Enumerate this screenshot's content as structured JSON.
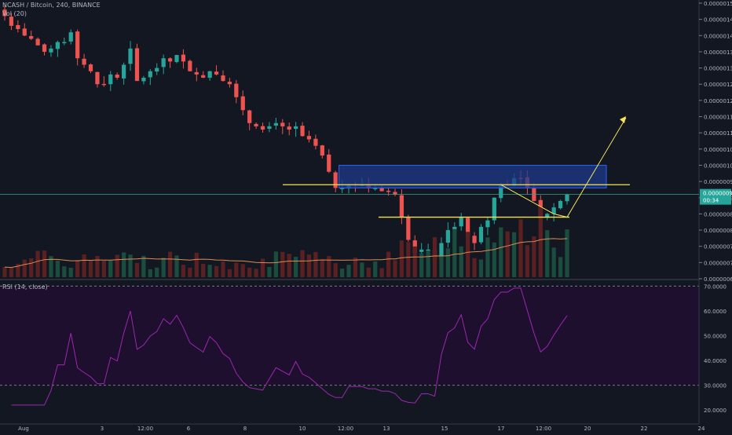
{
  "header": {
    "title": "NCASH / Bitcoin, 240, BINANCE",
    "volume_indicator": "Vol (20)",
    "rsi_indicator": "RSI (14, close)"
  },
  "colors": {
    "background": "#131722",
    "up": "#26a69a",
    "down": "#ef5350",
    "volume_up": "#1b4d3e",
    "volume_down": "#5b2021",
    "volume_ma": "#e08a53",
    "rsi_line": "#9c27b0",
    "rsi_band": "#1f0f2e",
    "yellow": "#f5e45a",
    "zone_fill": "#1e3a8a",
    "zone_stroke": "#2962ff",
    "price_line": "#26a69a",
    "axis_text": "#b2b5be"
  },
  "chart_data": {
    "type": "candlestick",
    "price_axis": {
      "range": [
        6.5e-07,
        1.5e-06
      ],
      "ticks": [
        "0.00000150",
        "0.00000145",
        "0.00000140",
        "0.00000135",
        "0.00000130",
        "0.00000125",
        "0.00000120",
        "0.00000115",
        "0.00000110",
        "0.00000105",
        "0.00000100",
        "0.00000095",
        "0.00000090",
        "0.00000085",
        "0.00000080",
        "0.00000075",
        "0.00000070",
        "0.00000065"
      ],
      "last_price_label": "0.00000091",
      "countdown_label": "00:34"
    },
    "time_axis": [
      "Aug",
      "3",
      "12:00",
      "6",
      "8",
      "10",
      "12:00",
      "13",
      "15",
      "17",
      "12:00",
      "20",
      "22",
      "24"
    ],
    "close_series": [
      1.46e-06,
      1.43e-06,
      1.42e-06,
      1.4e-06,
      1.39e-06,
      1.37e-06,
      1.35e-06,
      1.36e-06,
      1.38e-06,
      1.38e-06,
      1.41e-06,
      1.33e-06,
      1.31e-06,
      1.29e-06,
      1.25e-06,
      1.25e-06,
      1.28e-06,
      1.27e-06,
      1.31e-06,
      1.36e-06,
      1.26e-06,
      1.27e-06,
      1.29e-06,
      1.3e-06,
      1.33e-06,
      1.32e-06,
      1.34e-06,
      1.32e-06,
      1.29e-06,
      1.28e-06,
      1.27e-06,
      1.29e-06,
      1.28e-06,
      1.26e-06,
      1.25e-06,
      1.21e-06,
      1.17e-06,
      1.13e-06,
      1.12e-06,
      1.11e-06,
      1.12e-06,
      1.13e-06,
      1.12e-06,
      1.11e-06,
      1.12e-06,
      1.09e-06,
      1.08e-06,
      1.06e-06,
      1.03e-06,
      9.8e-07,
      9.3e-07,
      9.3e-07,
      9.4e-07,
      9.4e-07,
      9.4e-07,
      9.3e-07,
      9.3e-07,
      9.2e-07,
      9.2e-07,
      9.1e-07,
      8.4e-07,
      7.7e-07,
      7.3e-07,
      7.4e-07,
      7.4e-07,
      7.1e-07,
      7.6e-07,
      8e-07,
      8.1e-07,
      8.4e-07,
      7.8e-07,
      7.6e-07,
      8.1e-07,
      8.3e-07,
      9e-07,
      9.4e-07,
      9.4e-07,
      9.6e-07,
      9.6e-07,
      9.3e-07,
      8.9e-07,
      8.4e-07,
      8.5e-07,
      8.7e-07,
      8.9e-07,
      9.1e-07
    ],
    "yellow_resistance": 9.4e-07,
    "yellow_support": 8.4e-07,
    "zone": [
      9.3e-07,
      1e-06
    ],
    "rsi_axis": {
      "range": [
        15,
        72
      ],
      "ticks": [
        "70.0000",
        "60.0000",
        "50.0000",
        "40.0000",
        "30.0000",
        "20.0000"
      ],
      "bands": [
        70,
        30
      ]
    }
  }
}
